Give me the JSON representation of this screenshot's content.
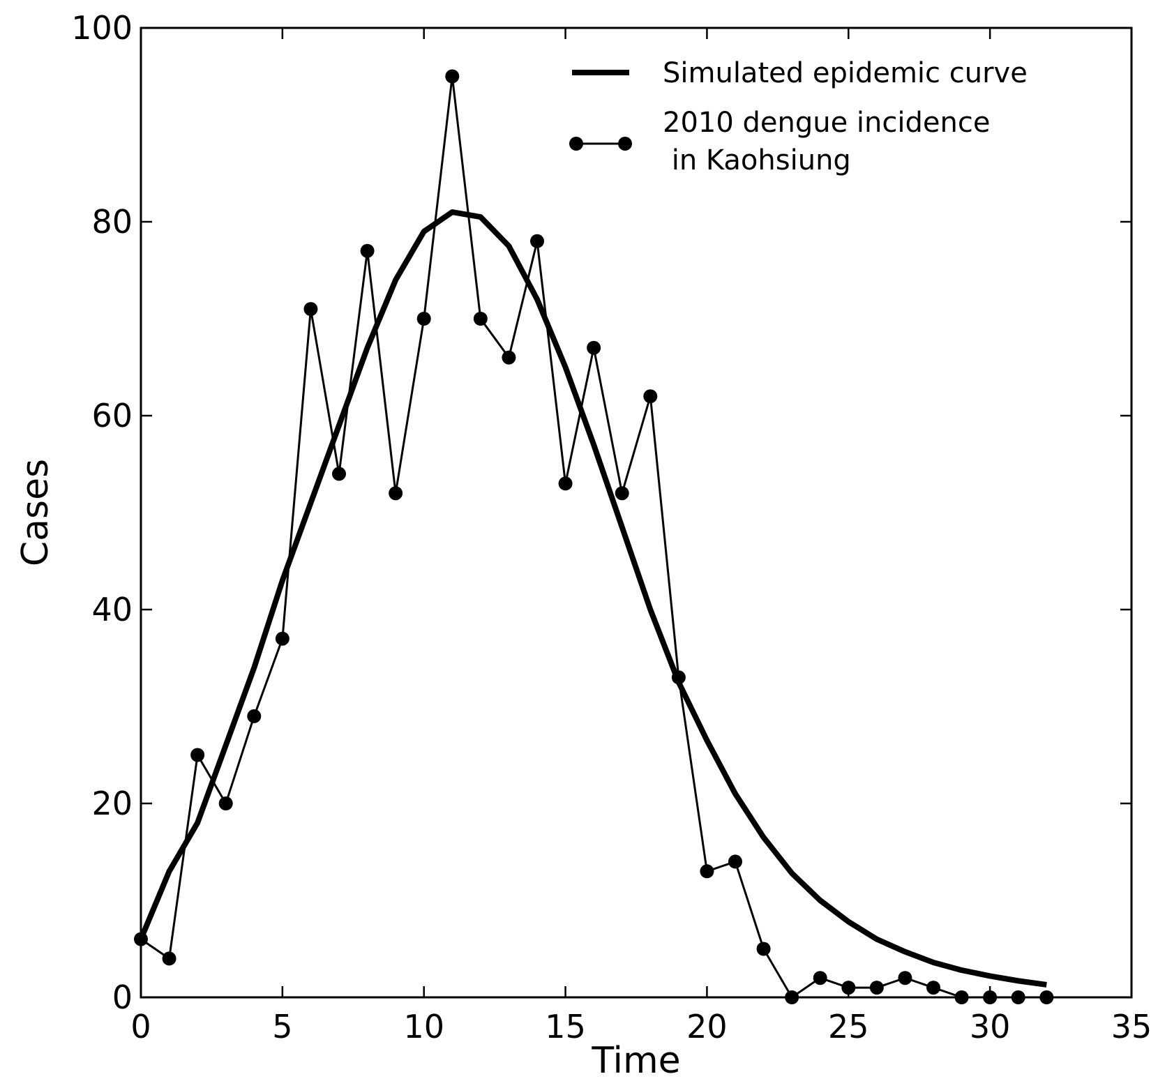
{
  "chart_data": {
    "type": "line",
    "title": "",
    "xlabel": "Time",
    "ylabel": "Cases",
    "xlim": [
      0,
      35
    ],
    "ylim": [
      0,
      100
    ],
    "xticks": [
      0,
      5,
      10,
      15,
      20,
      25,
      30,
      35
    ],
    "yticks": [
      0,
      20,
      40,
      60,
      80,
      100
    ],
    "grid": false,
    "legend_position": "top-right",
    "series": [
      {
        "name": "Simulated epidemic curve",
        "style": "thick-line",
        "color": "#000000",
        "x": [
          0,
          1,
          2,
          3,
          4,
          5,
          6,
          7,
          8,
          9,
          10,
          11,
          12,
          13,
          14,
          15,
          16,
          17,
          18,
          19,
          20,
          21,
          22,
          23,
          24,
          25,
          26,
          27,
          28,
          29,
          30,
          31,
          32
        ],
        "y": [
          6,
          13,
          18,
          26,
          34,
          43,
          51,
          59,
          67,
          74,
          79,
          81,
          80.5,
          77.5,
          72,
          65,
          57,
          48.5,
          40,
          32.5,
          26.5,
          21,
          16.5,
          12.8,
          10,
          7.8,
          6,
          4.7,
          3.6,
          2.8,
          2.2,
          1.7,
          1.3
        ]
      },
      {
        "name": "2010 dengue incidence\n in Kaohsiung",
        "style": "line-with-markers",
        "color": "#000000",
        "x": [
          0,
          1,
          2,
          3,
          4,
          5,
          6,
          7,
          8,
          9,
          10,
          11,
          12,
          13,
          14,
          15,
          16,
          17,
          18,
          19,
          20,
          21,
          22,
          23,
          24,
          25,
          26,
          27,
          28,
          29,
          30,
          31,
          32
        ],
        "y": [
          6,
          4,
          25,
          20,
          29,
          37,
          71,
          54,
          77,
          52,
          70,
          95,
          70,
          66,
          78,
          53,
          67,
          52,
          62,
          33,
          13,
          14,
          5,
          0,
          2,
          1,
          1,
          2,
          1,
          0,
          0,
          0,
          0
        ]
      }
    ]
  }
}
